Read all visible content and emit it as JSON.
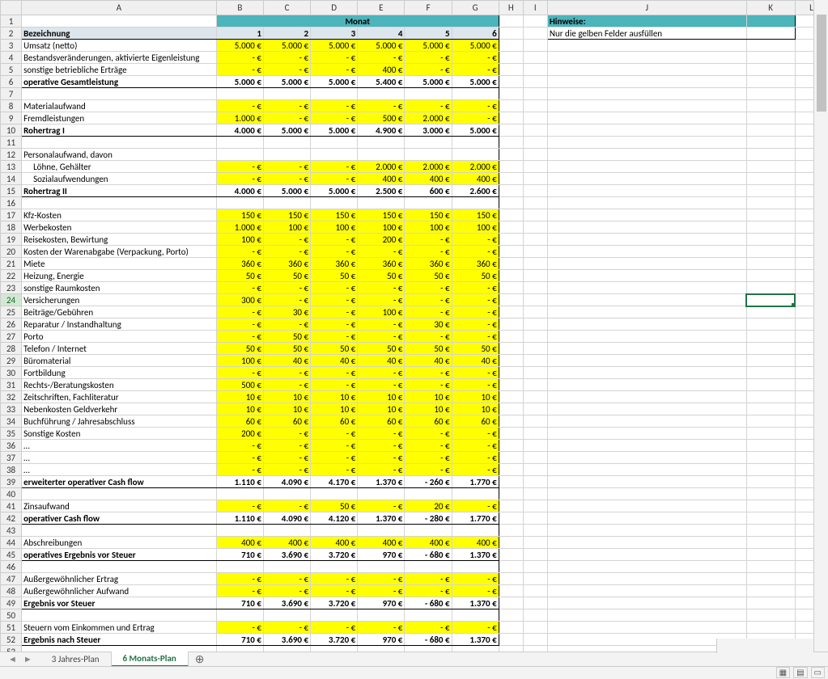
{
  "colHeaders": [
    "A",
    "B",
    "C",
    "D",
    "E",
    "F",
    "G",
    "H",
    "I",
    "J",
    "K",
    "L"
  ],
  "colClasses": [
    "col-A",
    "col-M",
    "col-M",
    "col-M",
    "col-M",
    "col-M",
    "col-M",
    "col-H",
    "col-I",
    "col-J",
    "col-K",
    "col-L"
  ],
  "monatHeader": "Monat",
  "hinweiseHeader": "Hinweise:",
  "bezeichnung": "Bezeichnung",
  "monthNums": [
    "1",
    "2",
    "3",
    "4",
    "5",
    "6"
  ],
  "hinweiseText": "Nur die gelben Felder ausfüllen",
  "tabs": {
    "prev": "3 Jahres-Plan",
    "active": "6 Monats-Plan"
  },
  "activeRow": 24,
  "rows": [
    {
      "r": 3,
      "label": "Umsatz (netto)",
      "vals": [
        "5.000 €",
        "5.000 €",
        "5.000 €",
        "5.000 €",
        "5.000 €",
        "5.000 €"
      ],
      "yellow": true
    },
    {
      "r": 4,
      "label": "Bestandsveränderungen, aktivierte Eigenleistung",
      "vals": [
        "- €",
        "- €",
        "- €",
        "- €",
        "- €",
        "- €"
      ],
      "yellow": true
    },
    {
      "r": 5,
      "label": "sonstige betriebliche Erträge",
      "vals": [
        "- €",
        "- €",
        "- €",
        "400 €",
        "- €",
        "- €"
      ],
      "yellow": true
    },
    {
      "r": 6,
      "label": "operative Gesamtleistung",
      "vals": [
        "5.000 €",
        "5.000 €",
        "5.000 €",
        "5.400 €",
        "5.000 €",
        "5.000 €"
      ],
      "bold": true,
      "line": true
    },
    {
      "r": 7,
      "label": "",
      "blank": true
    },
    {
      "r": 8,
      "label": "Materialaufwand",
      "vals": [
        "- €",
        "- €",
        "- €",
        "- €",
        "- €",
        "- €"
      ],
      "yellow": true
    },
    {
      "r": 9,
      "label": "Fremdleistungen",
      "vals": [
        "1.000 €",
        "- €",
        "- €",
        "500 €",
        "2.000 €",
        "- €"
      ],
      "yellow": true
    },
    {
      "r": 10,
      "label": "Rohertrag I",
      "vals": [
        "4.000 €",
        "5.000 €",
        "5.000 €",
        "4.900 €",
        "3.000 €",
        "5.000 €"
      ],
      "bold": true,
      "line": true
    },
    {
      "r": 11,
      "label": "",
      "blank": true
    },
    {
      "r": 12,
      "label": "Personalaufwand, davon"
    },
    {
      "r": 13,
      "label": "Löhne, Gehälter",
      "indent": true,
      "vals": [
        "- €",
        "- €",
        "- €",
        "2.000 €",
        "2.000 €",
        "2.000 €"
      ],
      "yellow": true
    },
    {
      "r": 14,
      "label": "Sozialaufwendungen",
      "indent": true,
      "vals": [
        "- €",
        "- €",
        "- €",
        "400 €",
        "400 €",
        "400 €"
      ],
      "yellow": true
    },
    {
      "r": 15,
      "label": "Rohertrag II",
      "vals": [
        "4.000 €",
        "5.000 €",
        "5.000 €",
        "2.500 €",
        "600 €",
        "2.600 €"
      ],
      "bold": true,
      "line": true
    },
    {
      "r": 16,
      "label": "",
      "blank": true
    },
    {
      "r": 17,
      "label": "Kfz-Kosten",
      "vals": [
        "150 €",
        "150 €",
        "150 €",
        "150 €",
        "150 €",
        "150 €"
      ],
      "yellow": true
    },
    {
      "r": 18,
      "label": "Werbekosten",
      "vals": [
        "1.000 €",
        "100 €",
        "100 €",
        "100 €",
        "100 €",
        "100 €"
      ],
      "yellow": true
    },
    {
      "r": 19,
      "label": "Reisekosten, Bewirtung",
      "vals": [
        "100 €",
        "- €",
        "- €",
        "200 €",
        "- €",
        "- €"
      ],
      "yellow": true
    },
    {
      "r": 20,
      "label": "Kosten der Warenabgabe (Verpackung, Porto)",
      "vals": [
        "- €",
        "- €",
        "- €",
        "- €",
        "- €",
        "- €"
      ],
      "yellow": true
    },
    {
      "r": 21,
      "label": "Miete",
      "vals": [
        "360 €",
        "360 €",
        "360 €",
        "360 €",
        "360 €",
        "360 €"
      ],
      "yellow": true
    },
    {
      "r": 22,
      "label": "Heizung, Energie",
      "vals": [
        "50 €",
        "50 €",
        "50 €",
        "50 €",
        "50 €",
        "50 €"
      ],
      "yellow": true
    },
    {
      "r": 23,
      "label": "sonstige Raumkosten",
      "vals": [
        "- €",
        "- €",
        "- €",
        "- €",
        "- €",
        "- €"
      ],
      "yellow": true
    },
    {
      "r": 24,
      "label": "Versicherungen",
      "vals": [
        "300 €",
        "- €",
        "- €",
        "- €",
        "- €",
        "- €"
      ],
      "yellow": true
    },
    {
      "r": 25,
      "label": "Beiträge/Gebühren",
      "vals": [
        "- €",
        "30 €",
        "- €",
        "100 €",
        "- €",
        "- €"
      ],
      "yellow": true
    },
    {
      "r": 26,
      "label": "Reparatur / Instandhaltung",
      "vals": [
        "- €",
        "- €",
        "- €",
        "- €",
        "30 €",
        "- €"
      ],
      "yellow": true
    },
    {
      "r": 27,
      "label": "Porto",
      "vals": [
        "- €",
        "50 €",
        "- €",
        "- €",
        "- €",
        "- €"
      ],
      "yellow": true
    },
    {
      "r": 28,
      "label": "Telefon / Internet",
      "vals": [
        "50 €",
        "50 €",
        "50 €",
        "50 €",
        "50 €",
        "50 €"
      ],
      "yellow": true
    },
    {
      "r": 29,
      "label": "Büromaterial",
      "vals": [
        "100 €",
        "40 €",
        "40 €",
        "40 €",
        "40 €",
        "40 €"
      ],
      "yellow": true
    },
    {
      "r": 30,
      "label": "Fortbildung",
      "vals": [
        "- €",
        "- €",
        "- €",
        "- €",
        "- €",
        "- €"
      ],
      "yellow": true
    },
    {
      "r": 31,
      "label": "Rechts-/Beratungskosten",
      "vals": [
        "500 €",
        "- €",
        "- €",
        "- €",
        "- €",
        "- €"
      ],
      "yellow": true
    },
    {
      "r": 32,
      "label": "Zeitschriften, Fachliteratur",
      "vals": [
        "10 €",
        "10 €",
        "10 €",
        "10 €",
        "10 €",
        "10 €"
      ],
      "yellow": true
    },
    {
      "r": 33,
      "label": "Nebenkosten Geldverkehr",
      "vals": [
        "10 €",
        "10 €",
        "10 €",
        "10 €",
        "10 €",
        "10 €"
      ],
      "yellow": true
    },
    {
      "r": 34,
      "label": "Buchführung / Jahresabschluss",
      "vals": [
        "60 €",
        "60 €",
        "60 €",
        "60 €",
        "60 €",
        "60 €"
      ],
      "yellow": true
    },
    {
      "r": 35,
      "label": "Sonstige Kosten",
      "vals": [
        "200 €",
        "- €",
        "- €",
        "- €",
        "- €",
        "- €"
      ],
      "yellow": true
    },
    {
      "r": 36,
      "label": "…",
      "vals": [
        "- €",
        "- €",
        "- €",
        "- €",
        "- €",
        "- €"
      ],
      "yellow": true
    },
    {
      "r": 37,
      "label": "…",
      "vals": [
        "- €",
        "- €",
        "- €",
        "- €",
        "- €",
        "- €"
      ],
      "yellow": true
    },
    {
      "r": 38,
      "label": "…",
      "vals": [
        "- €",
        "- €",
        "- €",
        "- €",
        "- €",
        "- €"
      ],
      "yellow": true
    },
    {
      "r": 39,
      "label": "erweiterter operativer Cash flow",
      "vals": [
        "1.110 €",
        "4.090 €",
        "4.170 €",
        "1.370 €",
        "- 260 €",
        "1.770 €"
      ],
      "bold": true,
      "line": true
    },
    {
      "r": 40,
      "label": "",
      "blank": true
    },
    {
      "r": 41,
      "label": "Zinsaufwand",
      "vals": [
        "- €",
        "- €",
        "50 €",
        "- €",
        "20 €",
        "- €"
      ],
      "yellow": true
    },
    {
      "r": 42,
      "label": "operativer Cash flow",
      "vals": [
        "1.110 €",
        "4.090 €",
        "4.120 €",
        "1.370 €",
        "- 280 €",
        "1.770 €"
      ],
      "bold": true,
      "line": true
    },
    {
      "r": 43,
      "label": "",
      "blank": true
    },
    {
      "r": 44,
      "label": "Abschreibungen",
      "vals": [
        "400 €",
        "400 €",
        "400 €",
        "400 €",
        "400 €",
        "400 €"
      ],
      "yellow": true
    },
    {
      "r": 45,
      "label": "operatives Ergebnis vor Steuer",
      "vals": [
        "710 €",
        "3.690 €",
        "3.720 €",
        "970 €",
        "- 680 €",
        "1.370 €"
      ],
      "bold": true,
      "line": true
    },
    {
      "r": 46,
      "label": "",
      "blank": true
    },
    {
      "r": 47,
      "label": "Außergewöhnlicher Ertrag",
      "vals": [
        "- €",
        "- €",
        "- €",
        "- €",
        "- €",
        "- €"
      ],
      "yellow": true
    },
    {
      "r": 48,
      "label": "Außergewöhnlicher Aufwand",
      "vals": [
        "- €",
        "- €",
        "- €",
        "- €",
        "- €",
        "- €"
      ],
      "yellow": true
    },
    {
      "r": 49,
      "label": "Ergebnis vor Steuer",
      "vals": [
        "710 €",
        "3.690 €",
        "3.720 €",
        "970 €",
        "- 680 €",
        "1.370 €"
      ],
      "bold": true,
      "line": true
    },
    {
      "r": 50,
      "label": "",
      "blank": true
    },
    {
      "r": 51,
      "label": "Steuern vom Einkommen und Ertrag",
      "vals": [
        "- €",
        "- €",
        "- €",
        "- €",
        "- €",
        "- €"
      ],
      "yellow": true
    },
    {
      "r": 52,
      "label": "Ergebnis nach Steuer",
      "vals": [
        "710 €",
        "3.690 €",
        "3.720 €",
        "970 €",
        "- 680 €",
        "1.370 €"
      ],
      "bold": true,
      "line": true
    },
    {
      "r": 53,
      "label": "",
      "blank": true,
      "noborder": true
    }
  ]
}
